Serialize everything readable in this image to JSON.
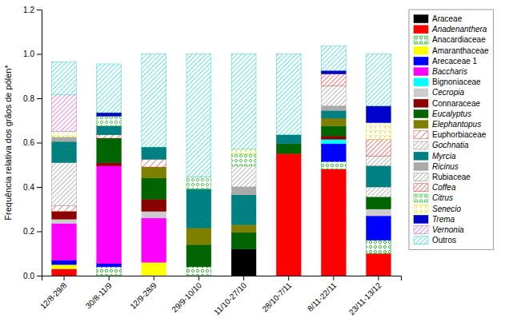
{
  "chart_data": {
    "type": "bar",
    "stacked": true,
    "grid": false,
    "legend": "right",
    "ylabel": "Frequência relativa dos grãos de pólen*",
    "categories": [
      "12/8-29/8",
      "30/8-11/9",
      "12/9-28/9",
      "29/9-10/10",
      "11/10-27/10",
      "28/10-7/11",
      "8/11-22/11",
      "23/11-13/12"
    ],
    "ylim": [
      0,
      1.2
    ],
    "yticks": [
      {
        "value": 0,
        "label": "0.0"
      },
      0.2,
      0.4,
      0.6,
      0.8,
      {
        "value": 1,
        "label": "1.0"
      },
      1.2
    ],
    "series": [
      {
        "name": "Araceae",
        "color": "#000000",
        "values": [
          0.0,
          0.0,
          0.0,
          0.0,
          0.12,
          0.0,
          0.0,
          0.0
        ]
      },
      {
        "name": "Anadenanthera",
        "color": "#ff0000",
        "values": [
          0.03,
          0.0,
          0.0,
          0.0,
          0.0,
          0.55,
          0.48,
          0.1
        ]
      },
      {
        "name": "Anacardiaceae",
        "color": "#00aa00",
        "values": [
          0.0,
          0.04,
          0.0,
          0.04,
          0.0,
          0.0,
          0.035,
          0.06
        ]
      },
      {
        "name": "Amaranthaceae",
        "color": "#ffff00",
        "values": [
          0.02,
          0.0,
          0.06,
          0.0,
          0.0,
          0.0,
          0.0,
          0.0
        ]
      },
      {
        "name": "Arecaceae 1",
        "color": "#0000ff",
        "values": [
          0.02,
          0.015,
          0.0,
          0.0,
          0.0,
          0.0,
          0.08,
          0.11
        ]
      },
      {
        "name": "Baccharis",
        "color": "#ff00ff",
        "values": [
          0.165,
          0.44,
          0.2,
          0.0,
          0.0,
          0.0,
          0.0,
          0.0
        ]
      },
      {
        "name": "Bignoniaceae",
        "color": "#00ffff",
        "values": [
          0.0,
          0.0,
          0.0,
          0.0,
          0.0,
          0.0,
          0.02,
          0.0
        ]
      },
      {
        "name": "Cecropia",
        "color": "#cccccc",
        "values": [
          0.02,
          0.0,
          0.03,
          0.0,
          0.0,
          0.0,
          0.0,
          0.03
        ]
      },
      {
        "name": "Connaraceae",
        "color": "#8b0000",
        "values": [
          0.035,
          0.015,
          0.055,
          0.0,
          0.0,
          0.0,
          0.015,
          0.0
        ]
      },
      {
        "name": "Eucalyptus",
        "color": "#006400",
        "values": [
          0.0,
          0.11,
          0.095,
          0.1,
          0.075,
          0.045,
          0.045,
          0.055
        ]
      },
      {
        "name": "Elephantopus",
        "color": "#808000",
        "values": [
          0.0,
          0.0,
          0.05,
          0.075,
          0.035,
          0.0,
          0.035,
          0.0
        ]
      },
      {
        "name": "Euphorbiaceae",
        "color": "#cc3333",
        "values": [
          0.025,
          0.015,
          0.035,
          0.0,
          0.0,
          0.0,
          0.0,
          0.0
        ]
      },
      {
        "name": "Gochnatia",
        "color": "#888888",
        "values": [
          0.195,
          0.0,
          0.0,
          0.0,
          0.0,
          0.0,
          0.0,
          0.045
        ]
      },
      {
        "name": "Myrcia",
        "color": "#008080",
        "values": [
          0.095,
          0.04,
          0.055,
          0.175,
          0.135,
          0.04,
          0.035,
          0.095
        ]
      },
      {
        "name": "Ricinus",
        "color": "#aaaaaa",
        "values": [
          0.02,
          0.0,
          0.0,
          0.0,
          0.035,
          0.0,
          0.02,
          0.0
        ]
      },
      {
        "name": "Rubiaceae",
        "color": "#888888",
        "values": [
          0.0,
          0.0,
          0.0,
          0.0,
          0.095,
          0.0,
          0.09,
          0.045
        ]
      },
      {
        "name": "Coffea",
        "color": "#dd2222",
        "values": [
          0.0,
          0.0,
          0.0,
          0.0,
          0.0,
          0.0,
          0.055,
          0.075
        ]
      },
      {
        "name": "Citrus",
        "color": "#22bb22",
        "values": [
          0.0,
          0.045,
          0.0,
          0.055,
          0.055,
          0.0,
          0.0,
          0.0
        ]
      },
      {
        "name": "Senecio",
        "color": "#dddd00",
        "values": [
          0.025,
          0.0,
          0.0,
          0.0,
          0.02,
          0.0,
          0.0,
          0.075
        ]
      },
      {
        "name": "Trema",
        "color": "#0000cc",
        "values": [
          0.0,
          0.015,
          0.0,
          0.0,
          0.0,
          0.0,
          0.015,
          0.075
        ]
      },
      {
        "name": "Vernonia",
        "color": "#cc44cc",
        "values": [
          0.165,
          0.0,
          0.0,
          0.0,
          0.0,
          0.0,
          0.0,
          0.0
        ]
      },
      {
        "name": "Outros",
        "color": "#00cccc",
        "values": [
          0.15,
          0.22,
          0.42,
          0.555,
          0.43,
          0.365,
          0.11,
          0.235
        ]
      }
    ]
  }
}
